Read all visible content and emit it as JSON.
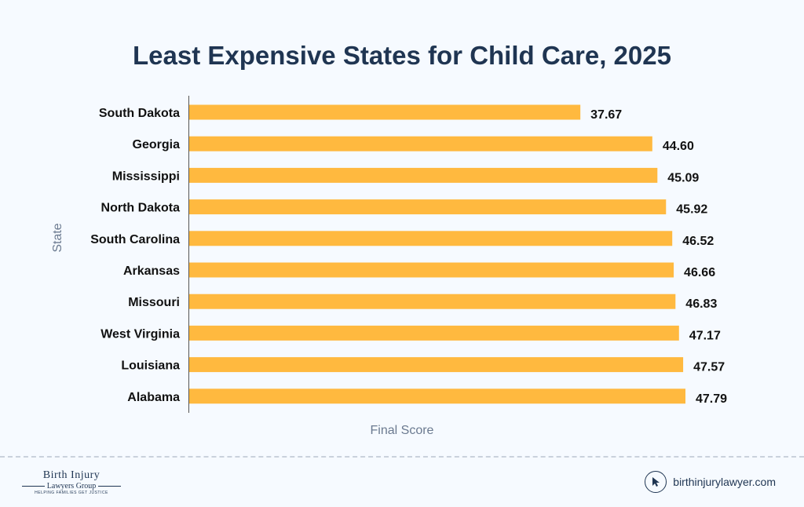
{
  "chart_data": {
    "type": "bar",
    "orientation": "horizontal",
    "title": "Least Expensive States for Child Care, 2025",
    "xlabel": "Final Score",
    "ylabel": "State",
    "xlim": [
      0,
      47.79
    ],
    "grid": false,
    "categories": [
      "South Dakota",
      "Georgia",
      "Mississippi",
      "North Dakota",
      "South Carolina",
      "Arkansas",
      "Missouri",
      "West Virginia",
      "Louisiana",
      "Alabama"
    ],
    "values": [
      37.67,
      44.6,
      45.09,
      45.92,
      46.52,
      46.66,
      46.83,
      47.17,
      47.57,
      47.79
    ],
    "value_labels": [
      "37.67",
      "44.60",
      "45.09",
      "45.92",
      "46.52",
      "46.66",
      "46.83",
      "47.17",
      "47.57",
      "47.79"
    ],
    "bar_color": "#ffb93f"
  },
  "footer": {
    "logo_line1": "Birth Injury",
    "logo_line2": "Lawyers Group",
    "logo_tagline": "HELPING FAMILIES GET JUSTICE",
    "website": "birthinjurylawyer.com",
    "website_icon": "cursor-icon"
  }
}
